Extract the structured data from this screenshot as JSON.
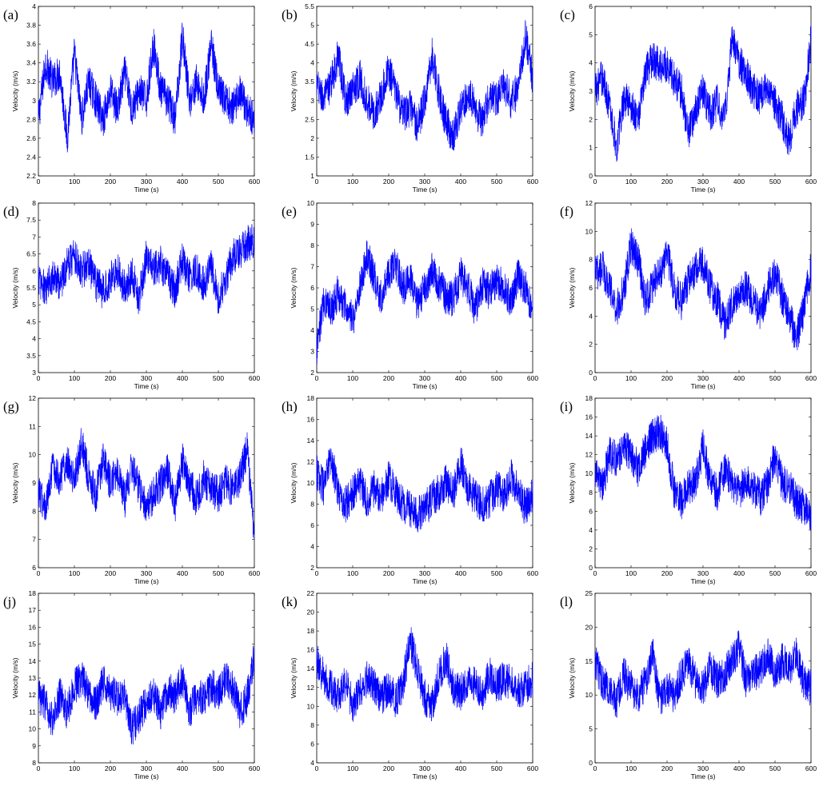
{
  "chart_data": [
    {
      "panel": "(a)",
      "type": "line",
      "xlabel": "Time (s)",
      "ylabel": "Velocity (m/s)",
      "xlim": [
        0,
        600
      ],
      "ylim": [
        2.2,
        4
      ],
      "xticks": [
        0,
        100,
        200,
        300,
        400,
        500,
        600
      ],
      "yticks": [
        2.2,
        2.4,
        2.6,
        2.8,
        3,
        3.2,
        3.4,
        3.6,
        3.8,
        4
      ],
      "ytick_labels": [
        "2.2",
        "2.4",
        "2.6",
        "2.8",
        "3",
        "3.2",
        "3.4",
        "3.6",
        "3.8",
        "4"
      ],
      "color": "#0000ff",
      "x": [
        0,
        20,
        40,
        60,
        80,
        100,
        120,
        140,
        160,
        180,
        200,
        220,
        240,
        260,
        280,
        300,
        320,
        340,
        360,
        380,
        400,
        420,
        440,
        460,
        480,
        500,
        520,
        540,
        560,
        580,
        600
      ],
      "y": [
        2.8,
        3.4,
        3.2,
        3.3,
        2.6,
        3.5,
        2.8,
        3.2,
        3.0,
        2.8,
        3.1,
        2.9,
        3.3,
        2.9,
        3.1,
        3.0,
        3.6,
        3.1,
        3.0,
        2.8,
        3.7,
        3.0,
        3.2,
        3.0,
        3.6,
        3.1,
        3.0,
        2.9,
        3.1,
        2.9,
        2.8
      ]
    },
    {
      "panel": "(b)",
      "type": "line",
      "xlabel": "Time (s)",
      "ylabel": "Velocity (m/s)",
      "xlim": [
        0,
        600
      ],
      "ylim": [
        1,
        5.5
      ],
      "xticks": [
        0,
        100,
        200,
        300,
        400,
        500,
        600
      ],
      "yticks": [
        1,
        1.5,
        2,
        2.5,
        3,
        3.5,
        4,
        4.5,
        5,
        5.5
      ],
      "ytick_labels": [
        "1",
        "1.5",
        "2",
        "2.5",
        "3",
        "3.5",
        "4",
        "4.5",
        "5",
        "5.5"
      ],
      "color": "#0000ff",
      "x": [
        0,
        20,
        40,
        60,
        80,
        100,
        120,
        140,
        160,
        180,
        200,
        220,
        240,
        260,
        280,
        300,
        320,
        340,
        360,
        380,
        400,
        420,
        440,
        460,
        480,
        500,
        520,
        540,
        560,
        580,
        600
      ],
      "y": [
        3.4,
        3.0,
        3.5,
        4.2,
        3.0,
        3.3,
        3.6,
        3.0,
        2.6,
        3.2,
        3.8,
        3.2,
        2.6,
        2.8,
        2.3,
        3.0,
        4.2,
        3.2,
        2.4,
        2.0,
        2.8,
        3.2,
        2.8,
        2.4,
        3.1,
        3.0,
        3.4,
        3.0,
        3.3,
        4.8,
        3.5
      ]
    },
    {
      "panel": "(c)",
      "type": "line",
      "xlabel": "Time (s)",
      "ylabel": "Velocity (m/s)",
      "xlim": [
        0,
        600
      ],
      "ylim": [
        0,
        6
      ],
      "xticks": [
        0,
        100,
        200,
        300,
        400,
        500,
        600
      ],
      "yticks": [
        0,
        1,
        2,
        3,
        4,
        5,
        6
      ],
      "ytick_labels": [
        "0",
        "1",
        "2",
        "3",
        "4",
        "5",
        "6"
      ],
      "color": "#0000ff",
      "x": [
        0,
        20,
        40,
        60,
        80,
        100,
        120,
        140,
        160,
        180,
        200,
        220,
        240,
        260,
        280,
        300,
        320,
        340,
        360,
        380,
        400,
        420,
        440,
        460,
        480,
        500,
        520,
        540,
        560,
        580,
        600
      ],
      "y": [
        3.0,
        3.5,
        2.5,
        1.0,
        2.8,
        2.5,
        2.0,
        3.6,
        4.2,
        3.8,
        4.0,
        3.4,
        3.0,
        1.5,
        2.4,
        3.0,
        2.2,
        2.6,
        2.0,
        4.8,
        4.0,
        3.6,
        3.0,
        2.8,
        3.2,
        2.6,
        2.0,
        1.2,
        2.4,
        2.6,
        4.8
      ]
    },
    {
      "panel": "(d)",
      "type": "line",
      "xlabel": "Time (s)",
      "ylabel": "Velocity (m/s)",
      "xlim": [
        0,
        600
      ],
      "ylim": [
        3,
        8
      ],
      "xticks": [
        0,
        100,
        200,
        300,
        400,
        500,
        600
      ],
      "yticks": [
        3,
        3.5,
        4,
        4.5,
        5,
        5.5,
        6,
        6.5,
        7,
        7.5,
        8
      ],
      "ytick_labels": [
        "3",
        "3.5",
        "4",
        "4.5",
        "5",
        "5.5",
        "6",
        "6.5",
        "7",
        "7.5",
        "8"
      ],
      "color": "#0000ff",
      "x": [
        0,
        20,
        40,
        60,
        80,
        100,
        120,
        140,
        160,
        180,
        200,
        220,
        240,
        260,
        280,
        300,
        320,
        340,
        360,
        380,
        400,
        420,
        440,
        460,
        480,
        500,
        520,
        540,
        560,
        580,
        600
      ],
      "y": [
        5.8,
        5.4,
        5.9,
        5.6,
        6.2,
        6.5,
        6.0,
        6.2,
        5.6,
        5.4,
        5.8,
        6.0,
        5.5,
        5.9,
        5.2,
        6.4,
        6.0,
        6.2,
        5.8,
        5.4,
        6.3,
        5.8,
        6.0,
        5.6,
        6.1,
        5.2,
        5.8,
        6.4,
        6.6,
        6.8,
        6.9
      ]
    },
    {
      "panel": "(e)",
      "type": "line",
      "xlabel": "Time (s)",
      "ylabel": "Velocity (m/s)",
      "xlim": [
        0,
        600
      ],
      "ylim": [
        2,
        10
      ],
      "xticks": [
        0,
        100,
        200,
        300,
        400,
        500,
        600
      ],
      "yticks": [
        2,
        3,
        4,
        5,
        6,
        7,
        8,
        9,
        10
      ],
      "ytick_labels": [
        "2",
        "3",
        "4",
        "5",
        "6",
        "7",
        "8",
        "9",
        "10"
      ],
      "color": "#0000ff",
      "x": [
        0,
        20,
        40,
        60,
        80,
        100,
        120,
        140,
        160,
        180,
        200,
        220,
        240,
        260,
        280,
        300,
        320,
        340,
        360,
        380,
        400,
        420,
        440,
        460,
        480,
        500,
        520,
        540,
        560,
        580,
        600
      ],
      "y": [
        3.0,
        5.5,
        5.0,
        5.8,
        5.0,
        4.5,
        6.0,
        7.5,
        6.5,
        5.5,
        6.8,
        7.0,
        6.0,
        6.5,
        5.2,
        6.0,
        6.8,
        6.2,
        5.6,
        5.5,
        6.6,
        6.0,
        5.0,
        6.2,
        5.8,
        6.4,
        6.0,
        5.4,
        6.6,
        6.0,
        4.6
      ]
    },
    {
      "panel": "(f)",
      "type": "line",
      "xlabel": "Time (s)",
      "ylabel": "Velocity (m/s)",
      "xlim": [
        0,
        600
      ],
      "ylim": [
        0,
        12
      ],
      "xticks": [
        0,
        100,
        200,
        300,
        400,
        500,
        600
      ],
      "yticks": [
        0,
        2,
        4,
        6,
        8,
        10,
        12
      ],
      "ytick_labels": [
        "0",
        "2",
        "4",
        "6",
        "8",
        "10",
        "12"
      ],
      "color": "#0000ff",
      "x": [
        0,
        20,
        40,
        60,
        80,
        100,
        120,
        140,
        160,
        180,
        200,
        220,
        240,
        260,
        280,
        300,
        320,
        340,
        360,
        380,
        400,
        420,
        440,
        460,
        480,
        500,
        520,
        540,
        560,
        580,
        600
      ],
      "y": [
        7.0,
        7.5,
        6.0,
        4.5,
        5.8,
        9.0,
        8.0,
        5.0,
        6.2,
        7.0,
        8.5,
        6.0,
        5.0,
        6.5,
        7.2,
        7.8,
        6.0,
        5.2,
        3.5,
        4.8,
        5.8,
        6.0,
        5.0,
        4.2,
        6.0,
        7.0,
        5.4,
        4.0,
        2.5,
        4.5,
        7.5
      ]
    },
    {
      "panel": "(g)",
      "type": "line",
      "xlabel": "Time (s)",
      "ylabel": "Velocity (m/s)",
      "xlim": [
        0,
        600
      ],
      "ylim": [
        6,
        12
      ],
      "xticks": [
        0,
        100,
        200,
        300,
        400,
        500,
        600
      ],
      "yticks": [
        6,
        7,
        8,
        9,
        10,
        11,
        12
      ],
      "ytick_labels": [
        "6",
        "7",
        "8",
        "9",
        "10",
        "11",
        "12"
      ],
      "color": "#0000ff",
      "x": [
        0,
        20,
        40,
        60,
        80,
        100,
        120,
        140,
        160,
        180,
        200,
        220,
        240,
        260,
        280,
        300,
        320,
        340,
        360,
        380,
        400,
        420,
        440,
        460,
        480,
        500,
        520,
        540,
        560,
        580,
        600
      ],
      "y": [
        8.8,
        8.0,
        9.5,
        9.2,
        9.8,
        9.0,
        10.5,
        9.2,
        8.6,
        9.8,
        9.0,
        9.4,
        8.4,
        9.6,
        8.8,
        8.0,
        8.6,
        9.0,
        9.4,
        8.2,
        9.8,
        9.0,
        8.4,
        9.2,
        8.8,
        8.6,
        9.0,
        8.8,
        9.2,
        10.2,
        7.2
      ]
    },
    {
      "panel": "(h)",
      "type": "line",
      "xlabel": "Time (s)",
      "ylabel": "Velocity (m/s)",
      "xlim": [
        0,
        600
      ],
      "ylim": [
        2,
        18
      ],
      "xticks": [
        0,
        100,
        200,
        300,
        400,
        500,
        600
      ],
      "yticks": [
        2,
        4,
        6,
        8,
        10,
        12,
        14,
        16,
        18
      ],
      "ytick_labels": [
        "2",
        "4",
        "6",
        "8",
        "10",
        "12",
        "14",
        "16",
        "18"
      ],
      "color": "#0000ff",
      "x": [
        0,
        20,
        40,
        60,
        80,
        100,
        120,
        140,
        160,
        180,
        200,
        220,
        240,
        260,
        280,
        300,
        320,
        340,
        360,
        380,
        400,
        420,
        440,
        460,
        480,
        500,
        520,
        540,
        560,
        580,
        600
      ],
      "y": [
        11.0,
        9.5,
        12.5,
        9.0,
        8.0,
        9.0,
        10.0,
        8.5,
        9.5,
        8.8,
        10.5,
        9.0,
        8.0,
        7.5,
        7.0,
        7.6,
        8.4,
        9.2,
        10.0,
        9.0,
        12.0,
        9.4,
        8.6,
        8.0,
        8.4,
        9.6,
        8.8,
        10.6,
        9.2,
        7.6,
        9.0
      ]
    },
    {
      "panel": "(i)",
      "type": "line",
      "xlabel": "Time (s)",
      "ylabel": "Velocity (m/s)",
      "xlim": [
        0,
        600
      ],
      "ylim": [
        0,
        18
      ],
      "xticks": [
        0,
        100,
        200,
        300,
        400,
        500,
        600
      ],
      "yticks": [
        0,
        2,
        4,
        6,
        8,
        10,
        12,
        14,
        16,
        18
      ],
      "ytick_labels": [
        "0",
        "2",
        "4",
        "6",
        "8",
        "10",
        "12",
        "14",
        "16",
        "18"
      ],
      "color": "#0000ff",
      "x": [
        0,
        20,
        40,
        60,
        80,
        100,
        120,
        140,
        160,
        180,
        200,
        220,
        240,
        260,
        280,
        300,
        320,
        340,
        360,
        380,
        400,
        420,
        440,
        460,
        480,
        500,
        520,
        540,
        560,
        580,
        600
      ],
      "y": [
        10.0,
        8.5,
        12.0,
        11.5,
        13.0,
        12.0,
        10.5,
        12.5,
        14.0,
        14.5,
        13.0,
        8.0,
        7.0,
        8.5,
        9.0,
        13.0,
        9.0,
        8.0,
        10.5,
        9.0,
        8.0,
        9.5,
        8.5,
        7.5,
        9.0,
        12.0,
        9.0,
        8.5,
        7.0,
        6.5,
        5.0
      ]
    },
    {
      "panel": "(j)",
      "type": "line",
      "xlabel": "Time (s)",
      "ylabel": "Velocity (m/s)",
      "xlim": [
        0,
        600
      ],
      "ylim": [
        8,
        18
      ],
      "xticks": [
        0,
        100,
        200,
        300,
        400,
        500,
        600
      ],
      "yticks": [
        8,
        9,
        10,
        11,
        12,
        13,
        14,
        15,
        16,
        17,
        18
      ],
      "ytick_labels": [
        "8",
        "9",
        "10",
        "11",
        "12",
        "13",
        "14",
        "15",
        "16",
        "17",
        "18"
      ],
      "color": "#0000ff",
      "x": [
        0,
        20,
        40,
        60,
        80,
        100,
        120,
        140,
        160,
        180,
        200,
        220,
        240,
        260,
        280,
        300,
        320,
        340,
        360,
        380,
        400,
        420,
        440,
        460,
        480,
        500,
        520,
        540,
        560,
        580,
        600
      ],
      "y": [
        12.0,
        11.5,
        10.5,
        12.0,
        11.0,
        12.5,
        13.0,
        12.0,
        11.5,
        12.8,
        12.2,
        11.8,
        12.0,
        10.0,
        10.8,
        11.5,
        12.0,
        11.0,
        12.4,
        11.8,
        13.0,
        11.0,
        12.0,
        11.6,
        12.6,
        12.0,
        13.0,
        12.4,
        11.0,
        11.8,
        14.5
      ]
    },
    {
      "panel": "(k)",
      "type": "line",
      "xlabel": "Time (s)",
      "ylabel": "Velocity (m/s)",
      "xlim": [
        0,
        600
      ],
      "ylim": [
        4,
        22
      ],
      "xticks": [
        0,
        100,
        200,
        300,
        400,
        500,
        600
      ],
      "yticks": [
        4,
        6,
        8,
        10,
        12,
        14,
        16,
        18,
        20,
        22
      ],
      "ytick_labels": [
        "4",
        "6",
        "8",
        "10",
        "12",
        "14",
        "16",
        "18",
        "20",
        "22"
      ],
      "color": "#0000ff",
      "x": [
        0,
        20,
        40,
        60,
        80,
        100,
        120,
        140,
        160,
        180,
        200,
        220,
        240,
        260,
        280,
        300,
        320,
        340,
        360,
        380,
        400,
        420,
        440,
        460,
        480,
        500,
        520,
        540,
        560,
        580,
        600
      ],
      "y": [
        15.0,
        13.0,
        12.0,
        11.0,
        12.5,
        10.0,
        11.5,
        13.0,
        12.0,
        11.0,
        12.0,
        10.5,
        12.5,
        17.0,
        14.0,
        11.0,
        10.0,
        13.5,
        15.0,
        12.0,
        11.5,
        13.0,
        12.5,
        11.0,
        13.5,
        12.0,
        13.0,
        12.5,
        11.5,
        12.0,
        13.0
      ]
    },
    {
      "panel": "(l)",
      "type": "line",
      "xlabel": "Time (s)",
      "ylabel": "Velocity (m/s)",
      "xlim": [
        0,
        600
      ],
      "ylim": [
        0,
        25
      ],
      "xticks": [
        0,
        100,
        200,
        300,
        400,
        500,
        600
      ],
      "yticks": [
        0,
        5,
        10,
        15,
        20,
        25
      ],
      "ytick_labels": [
        "0",
        "5",
        "10",
        "15",
        "20",
        "25"
      ],
      "color": "#0000ff",
      "x": [
        0,
        20,
        40,
        60,
        80,
        100,
        120,
        140,
        160,
        180,
        200,
        220,
        240,
        260,
        280,
        300,
        320,
        340,
        360,
        380,
        400,
        420,
        440,
        460,
        480,
        500,
        520,
        540,
        560,
        580,
        600
      ],
      "y": [
        15.0,
        12.0,
        11.0,
        9.0,
        13.0,
        11.0,
        10.0,
        12.0,
        16.0,
        9.0,
        11.0,
        10.0,
        13.0,
        15.0,
        12.0,
        11.0,
        14.0,
        12.0,
        13.0,
        15.0,
        17.0,
        12.0,
        13.0,
        14.0,
        16.0,
        13.0,
        15.0,
        14.0,
        16.0,
        12.0,
        11.0
      ]
    }
  ]
}
